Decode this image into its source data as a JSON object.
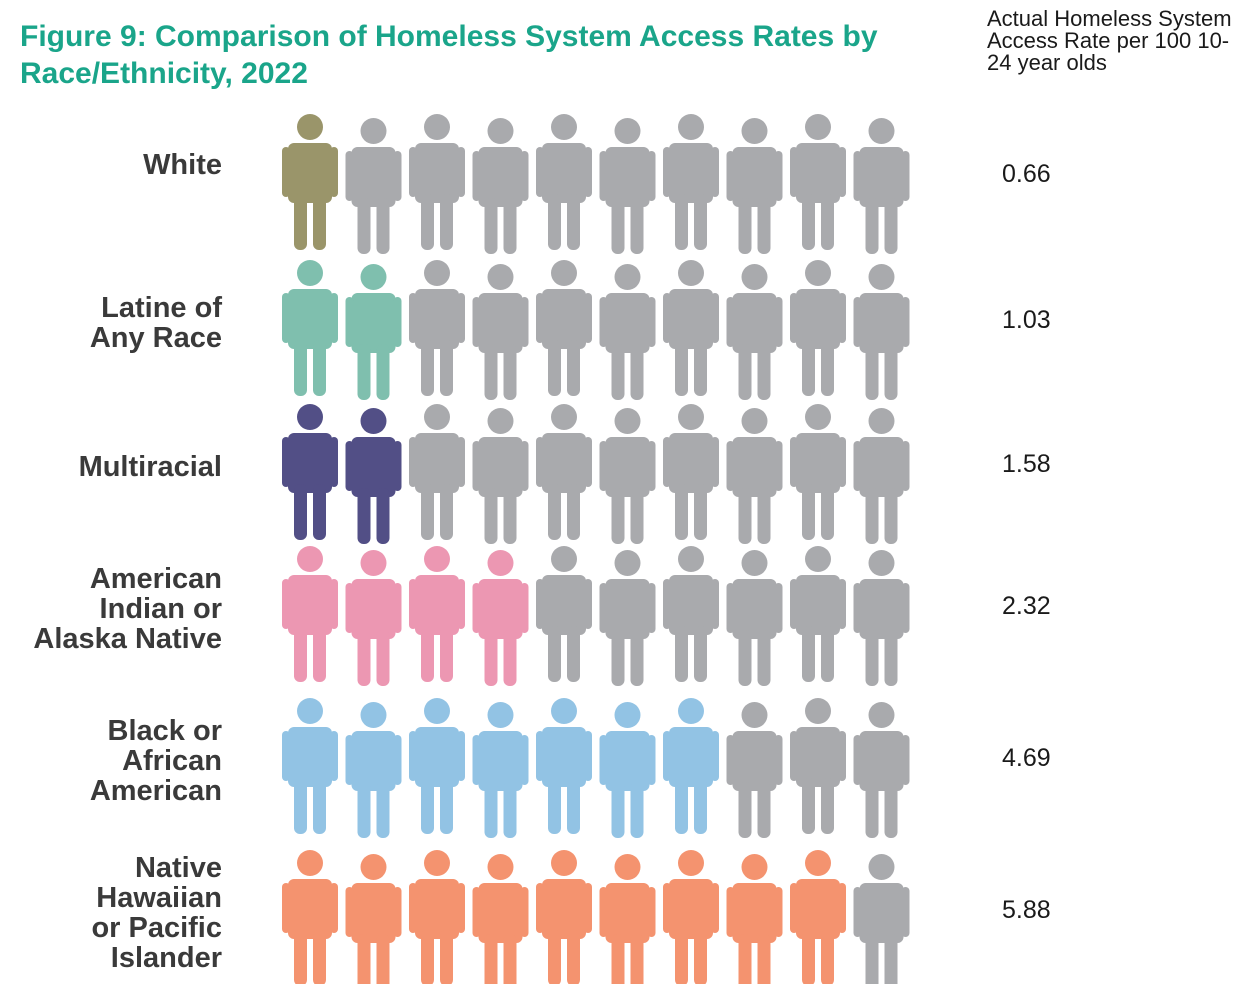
{
  "title": "Figure 9: Comparison of Homeless System Access Rates by Race/Ethnicity, 2022",
  "column_header": "Actual Homeless System Access Rate per 100 10-24 year olds",
  "colors": {
    "title": "#1aa58a",
    "inactive_figure": "#a9aaad"
  },
  "chart_data": {
    "type": "pictogram",
    "title": "Figure 9: Comparison of Homeless System Access Rates by Race/Ethnicity, 2022",
    "value_label": "Actual Homeless System Access Rate per 100 10-24 year olds",
    "icons_per_row": 10,
    "icon": "person-icon",
    "categories": [
      {
        "label": [
          "White"
        ],
        "rate": "0.66",
        "filled_icons": 1,
        "color": "#9a956a"
      },
      {
        "label": [
          "Latine of",
          "Any Race"
        ],
        "rate": "1.03",
        "filled_icons": 2,
        "color": "#7fbfae"
      },
      {
        "label": [
          "Multiracial"
        ],
        "rate": "1.58",
        "filled_icons": 2,
        "color": "#524f86"
      },
      {
        "label": [
          "American",
          "Indian or",
          "Alaska Native"
        ],
        "rate": "2.32",
        "filled_icons": 4,
        "color": "#ec97b2"
      },
      {
        "label": [
          "Black or",
          "African",
          "American"
        ],
        "rate": "4.69",
        "filled_icons": 7,
        "color": "#92c3e4"
      },
      {
        "label": [
          "Native",
          "Hawaiian",
          "or Pacific",
          "Islander"
        ],
        "rate": "5.88",
        "filled_icons": 9,
        "color": "#f4936f"
      }
    ]
  }
}
